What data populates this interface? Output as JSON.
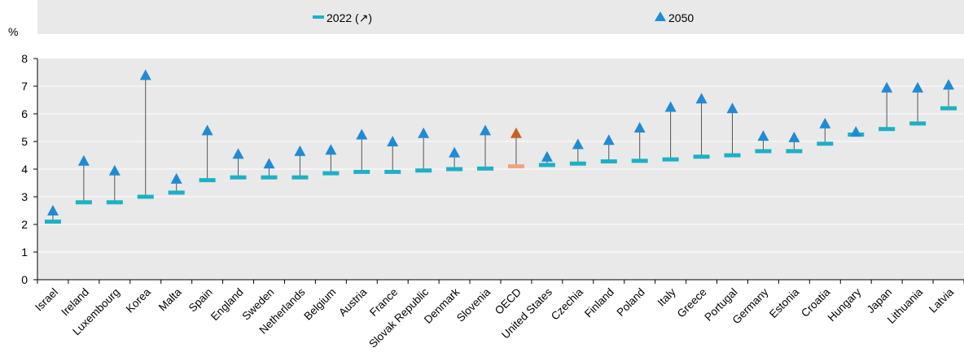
{
  "chart_data": {
    "type": "dot-range",
    "legend": {
      "items": [
        {
          "label": "2022 (↗)",
          "marker": "dash",
          "color": "#1bb1c6"
        },
        {
          "label": "2050",
          "marker": "triangle",
          "color": "#1f8bd6"
        }
      ],
      "placement": "top"
    },
    "yunit": "%",
    "ylim": [
      0,
      8
    ],
    "yticks": [
      0,
      1,
      2,
      3,
      4,
      5,
      6,
      7,
      8
    ],
    "grid": true,
    "categories": [
      "Israel",
      "Ireland",
      "Luxembourg",
      "Korea",
      "Malta",
      "Spain",
      "England",
      "Sweden",
      "Netherlands",
      "Belgium",
      "Austria",
      "France",
      "Slovak Republic",
      "Denmark",
      "Slovenia",
      "OECD",
      "United States",
      "Czechia",
      "Finland",
      "Poland",
      "Italy",
      "Greece",
      "Portugal",
      "Germany",
      "Estonia",
      "Croatia",
      "Hungary",
      "Japan",
      "Lithuania",
      "Latvia"
    ],
    "series": [
      {
        "name": "2022 (↗)",
        "values": [
          2.1,
          2.8,
          2.8,
          3.0,
          3.15,
          3.6,
          3.7,
          3.7,
          3.7,
          3.85,
          3.9,
          3.9,
          3.95,
          4.0,
          4.02,
          4.1,
          4.15,
          4.2,
          4.28,
          4.3,
          4.35,
          4.45,
          4.5,
          4.65,
          4.65,
          4.92,
          5.25,
          5.45,
          5.65,
          6.2
        ]
      },
      {
        "name": "2050",
        "values": [
          2.5,
          4.3,
          3.95,
          7.4,
          3.65,
          5.4,
          4.55,
          4.2,
          4.65,
          4.7,
          5.25,
          5.0,
          5.3,
          4.6,
          5.4,
          5.3,
          4.45,
          4.9,
          5.05,
          5.5,
          6.25,
          6.55,
          6.2,
          5.2,
          5.15,
          5.65,
          5.35,
          6.95,
          6.95,
          7.05
        ]
      }
    ],
    "highlight": {
      "category": "OECD",
      "color_2022": "#f2a57a",
      "color_2050": "#c8611f"
    },
    "colors": {
      "plot_bg": "#e9e9e9",
      "grid": "#ffffff",
      "connector": "#555555",
      "dash": "#1bb1c6",
      "triangle": "#1f8bd6"
    }
  }
}
